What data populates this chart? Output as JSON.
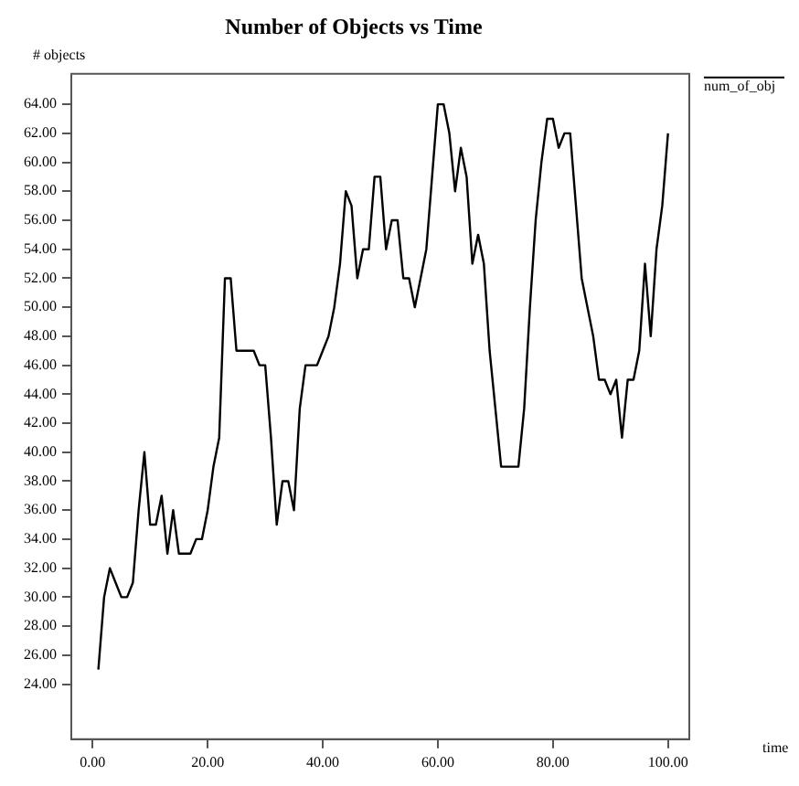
{
  "chart_data": {
    "type": "line",
    "title": "Number of Objects vs Time",
    "xlabel": "time",
    "ylabel": "# objects",
    "legend": "top right",
    "grid": false,
    "marker": "none",
    "line_style": "solid",
    "xlim": [
      -3.7,
      103.7
    ],
    "ylim": [
      20.2,
      66.1
    ],
    "xticks": [
      {
        "value": 0,
        "label": "0.00"
      },
      {
        "value": 20,
        "label": "20.00"
      },
      {
        "value": 40,
        "label": "40.00"
      },
      {
        "value": 60,
        "label": "60.00"
      },
      {
        "value": 80,
        "label": "80.00"
      },
      {
        "value": 100,
        "label": "100.00"
      }
    ],
    "yticks": [
      {
        "value": 24,
        "label": "24.00"
      },
      {
        "value": 26,
        "label": "26.00"
      },
      {
        "value": 28,
        "label": "28.00"
      },
      {
        "value": 30,
        "label": "30.00"
      },
      {
        "value": 32,
        "label": "32.00"
      },
      {
        "value": 34,
        "label": "34.00"
      },
      {
        "value": 36,
        "label": "36.00"
      },
      {
        "value": 38,
        "label": "38.00"
      },
      {
        "value": 40,
        "label": "40.00"
      },
      {
        "value": 42,
        "label": "42.00"
      },
      {
        "value": 44,
        "label": "44.00"
      },
      {
        "value": 46,
        "label": "46.00"
      },
      {
        "value": 48,
        "label": "48.00"
      },
      {
        "value": 50,
        "label": "50.00"
      },
      {
        "value": 52,
        "label": "52.00"
      },
      {
        "value": 54,
        "label": "54.00"
      },
      {
        "value": 56,
        "label": "56.00"
      },
      {
        "value": 58,
        "label": "58.00"
      },
      {
        "value": 60,
        "label": "60.00"
      },
      {
        "value": 62,
        "label": "62.00"
      },
      {
        "value": 64,
        "label": "64.00"
      }
    ],
    "x": [
      1,
      2,
      3,
      4,
      5,
      6,
      7,
      8,
      9,
      10,
      11,
      12,
      13,
      14,
      15,
      16,
      17,
      18,
      19,
      20,
      21,
      22,
      23,
      24,
      25,
      26,
      27,
      28,
      29,
      30,
      31,
      32,
      33,
      34,
      35,
      36,
      37,
      38,
      39,
      40,
      41,
      42,
      43,
      44,
      45,
      46,
      47,
      48,
      49,
      50,
      51,
      52,
      53,
      54,
      55,
      56,
      57,
      58,
      59,
      60,
      61,
      62,
      63,
      64,
      65,
      66,
      67,
      68,
      69,
      70,
      71,
      72,
      73,
      74,
      75,
      76,
      77,
      78,
      79,
      80,
      81,
      82,
      83,
      84,
      85,
      86,
      87,
      88,
      89,
      90,
      91,
      92,
      93,
      94,
      95,
      96,
      97,
      98,
      99,
      100
    ],
    "series": [
      {
        "name": "num_of_obj",
        "color": "#000000",
        "values": [
          25,
          30,
          32,
          31,
          30,
          30,
          31,
          36,
          40,
          35,
          35,
          37,
          33,
          36,
          33,
          33,
          33,
          34,
          34,
          36,
          39,
          41,
          52,
          52,
          47,
          47,
          47,
          47,
          46,
          46,
          41,
          35,
          38,
          38,
          36,
          43,
          46,
          46,
          46,
          47,
          48,
          50,
          53,
          58,
          57,
          52,
          54,
          54,
          59,
          59,
          54,
          56,
          56,
          52,
          52,
          50,
          52,
          54,
          59,
          64,
          64,
          62,
          58,
          61,
          59,
          53,
          55,
          53,
          47,
          43,
          39,
          39,
          39,
          39,
          43,
          50,
          56,
          60,
          63,
          63,
          61,
          62,
          62,
          57,
          52,
          50,
          48,
          45,
          45,
          44,
          45,
          41,
          45,
          45,
          47,
          53,
          48,
          54,
          57,
          62
        ]
      }
    ]
  }
}
